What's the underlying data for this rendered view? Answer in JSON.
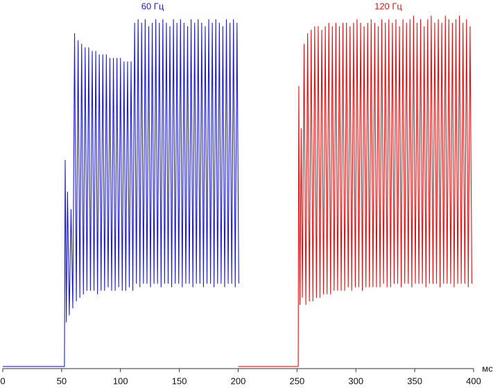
{
  "chart_data": {
    "type": "line",
    "xlabel": "мс",
    "xlim": [
      0,
      400
    ],
    "xticks": [
      0,
      50,
      100,
      150,
      200,
      250,
      300,
      350,
      400
    ],
    "ylim": [
      0,
      101
    ],
    "series": [
      {
        "name": "60 Гц",
        "color": "#1c1ccc",
        "x": [
          0,
          52.4,
          53,
          54,
          55,
          56.5,
          58,
          59.5,
          61,
          62.5,
          64,
          65.5,
          67,
          68.5,
          70,
          71.5,
          73,
          74.5,
          76,
          77.5,
          79,
          80.5,
          82,
          83.5,
          85,
          86.5,
          88,
          89.5,
          91,
          92.5,
          94,
          95.5,
          97,
          98.5,
          100,
          101.5,
          103,
          104.5,
          106,
          107.5,
          109,
          110.5,
          112,
          113.5,
          115,
          116.5,
          118,
          119.5,
          121,
          122.5,
          124,
          125.5,
          127,
          128.5,
          130,
          131.5,
          133,
          134.5,
          136,
          137.5,
          139,
          140.5,
          142,
          143.5,
          145,
          146.5,
          148,
          149.5,
          151,
          152.5,
          154,
          155.5,
          157,
          158.5,
          160,
          161.5,
          163,
          164.5,
          166,
          167.5,
          169,
          170.5,
          172,
          173.5,
          175,
          176.5,
          178,
          179.5,
          181,
          182.5,
          184,
          185.5,
          187,
          188.5,
          190,
          191.5,
          193,
          194.5,
          196,
          197.5,
          199,
          200.5
        ],
        "values": [
          0.4,
          0.4,
          59,
          13,
          50,
          15,
          45,
          17,
          95,
          19,
          93,
          20,
          92,
          21,
          91,
          22,
          91,
          22,
          90,
          22,
          90,
          21,
          89,
          22,
          89,
          22,
          89,
          23,
          88,
          22,
          88,
          22,
          88,
          23,
          88,
          22,
          87,
          22,
          87,
          23,
          87,
          22,
          98,
          24,
          99,
          23,
          98,
          24,
          99,
          24,
          97,
          23,
          98,
          24,
          99,
          24,
          98,
          23,
          99,
          24,
          98,
          24,
          97,
          23,
          99,
          24,
          98,
          24,
          99,
          23,
          98,
          24,
          97,
          24,
          99,
          23,
          98,
          24,
          99,
          24,
          98,
          23,
          97,
          24,
          99,
          24,
          98,
          23,
          99,
          24,
          98,
          24,
          97,
          23,
          99,
          24,
          98,
          24,
          99,
          23,
          98,
          24
        ]
      },
      {
        "name": "120 Гц",
        "color": "#e01010",
        "x": [
          200,
          251,
          251.5,
          252.5,
          253.5,
          254.5,
          256,
          257.5,
          259,
          260.5,
          262,
          263.5,
          265,
          266.5,
          268,
          269.5,
          271,
          272.5,
          274,
          275.5,
          277,
          278.5,
          280,
          281.5,
          283,
          284.5,
          286,
          287.5,
          289,
          290.5,
          292,
          293.5,
          295,
          296.5,
          298,
          299.5,
          301,
          302.5,
          304,
          305.5,
          307,
          308.5,
          310,
          311.5,
          313,
          314.5,
          316,
          317.5,
          319,
          320.5,
          322,
          323.5,
          325,
          326.5,
          328,
          329.5,
          331,
          332.5,
          334,
          335.5,
          337,
          338.5,
          340,
          341.5,
          343,
          344.5,
          346,
          347.5,
          349,
          350.5,
          352,
          353.5,
          355,
          356.5,
          358,
          359.5,
          361,
          362.5,
          364,
          365.5,
          367,
          368.5,
          370,
          371.5,
          373,
          374.5,
          376,
          377.5,
          379,
          380.5,
          382,
          383.5,
          385,
          386.5,
          388,
          389.5,
          391,
          392.5,
          394,
          395.5,
          397,
          398.5
        ],
        "values": [
          0.4,
          0.4,
          80,
          18,
          68,
          20,
          92,
          18,
          95,
          19,
          96,
          19,
          97,
          20,
          97,
          20,
          96,
          21,
          97,
          21,
          98,
          21,
          97,
          22,
          98,
          22,
          97,
          22,
          98,
          22,
          98,
          23,
          97,
          22,
          98,
          23,
          99,
          23,
          98,
          22,
          97,
          23,
          98,
          23,
          99,
          23,
          98,
          23,
          97,
          23,
          99,
          24,
          98,
          23,
          99,
          23,
          98,
          24,
          99,
          24,
          97,
          23,
          99,
          24,
          98,
          24,
          99,
          23,
          100,
          24,
          98,
          24,
          99,
          24,
          97,
          23,
          99,
          24,
          100,
          24,
          98,
          24,
          99,
          23,
          98,
          24,
          100,
          24,
          99,
          24,
          98,
          23,
          99,
          24,
          100,
          24,
          98,
          24,
          99,
          23,
          97,
          24
        ]
      }
    ]
  }
}
